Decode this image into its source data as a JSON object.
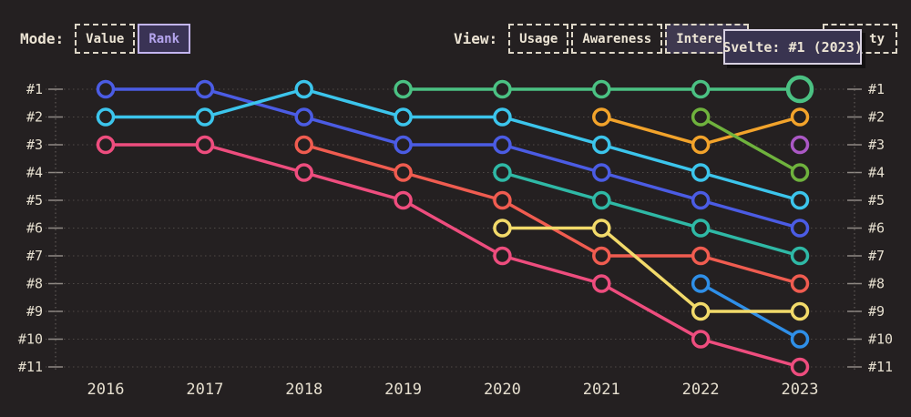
{
  "page": {
    "background": "#242021",
    "text_color": "#ece4d4"
  },
  "toolbar": {
    "mode": {
      "label": "Mode:",
      "options": [
        {
          "label": "Value",
          "selected": false
        },
        {
          "label": "Rank",
          "selected": true
        }
      ]
    },
    "view": {
      "label": "View:",
      "options": [
        {
          "label": "Usage",
          "selected": false
        },
        {
          "label": "Awareness",
          "selected": false
        },
        {
          "label": "Interest",
          "selected": true
        },
        {
          "label": "ty",
          "selected": false,
          "partially_hidden_by_tooltip": true
        }
      ]
    }
  },
  "tooltip": {
    "text": "Svelte: #1 (2023)",
    "background": "#393450",
    "border_color": "#d8d1e2"
  },
  "chart_data": {
    "type": "line",
    "variant": "bump-rank-chart",
    "x": [
      2016,
      2017,
      2018,
      2019,
      2020,
      2021,
      2022,
      2023
    ],
    "rank_labels": [
      "#1",
      "#2",
      "#3",
      "#4",
      "#5",
      "#6",
      "#7",
      "#8",
      "#9",
      "#10",
      "#11"
    ],
    "y_axis": {
      "inverted": true,
      "range": [
        1,
        11
      ],
      "tick_prefix": "#"
    },
    "grid": {
      "horizontal_dotted": true,
      "edge_vertical_dotted": true
    },
    "legend": "none",
    "series": [
      {
        "id": "indigo",
        "color": "#4b5ce4",
        "ranks_by_year": {
          "2016": 1,
          "2017": 1,
          "2018": 2,
          "2019": 3,
          "2020": 3,
          "2021": 4,
          "2022": 5,
          "2023": 6
        }
      },
      {
        "id": "cyan",
        "color": "#3cc5ec",
        "ranks_by_year": {
          "2016": 2,
          "2017": 2,
          "2018": 1,
          "2019": 2,
          "2020": 2,
          "2021": 3,
          "2022": 4,
          "2023": 5
        }
      },
      {
        "id": "pink",
        "color": "#ee4d7e",
        "ranks_by_year": {
          "2016": 3,
          "2017": 3,
          "2018": 4,
          "2019": 5,
          "2020": 7,
          "2021": 8,
          "2022": 10,
          "2023": 11
        }
      },
      {
        "id": "salmon",
        "color": "#f05c50",
        "ranks_by_year": {
          "2018": 3,
          "2019": 4,
          "2020": 5,
          "2021": 7,
          "2022": 7,
          "2023": 8
        }
      },
      {
        "id": "teal",
        "color": "#2fb9a6",
        "ranks_by_year": {
          "2020": 4,
          "2021": 5,
          "2022": 6,
          "2023": 7
        }
      },
      {
        "id": "skyblue",
        "color": "#2f8fe8",
        "ranks_by_year": {
          "2022": 8,
          "2023": 10
        }
      },
      {
        "id": "yellow",
        "color": "#f2da6a",
        "ranks_by_year": {
          "2020": 6,
          "2021": 6,
          "2022": 9,
          "2023": 9
        }
      },
      {
        "id": "orange",
        "color": "#f2a32b",
        "ranks_by_year": {
          "2021": 2,
          "2022": 3,
          "2023": 2
        }
      },
      {
        "id": "lime",
        "color": "#6fb23d",
        "ranks_by_year": {
          "2022": 2,
          "2023": 4
        }
      },
      {
        "id": "purple",
        "color": "#ab58c5",
        "ranks_by_year": {
          "2023": 3
        }
      },
      {
        "id": "svelte",
        "name": "Svelte",
        "color": "#4bc183",
        "ranks_by_year": {
          "2019": 1,
          "2020": 1,
          "2021": 1,
          "2022": 1,
          "2023": 1
        },
        "highlight": {
          "year": 2023,
          "rank": 1,
          "tooltip": "Svelte: #1 (2023)"
        }
      }
    ]
  }
}
